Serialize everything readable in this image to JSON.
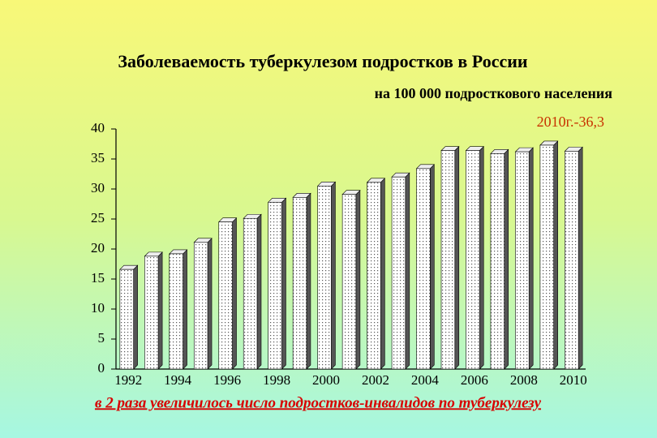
{
  "chart_data": {
    "type": "bar",
    "title": "Заболеваемость туберкулезом подростков в России",
    "subtitle": "на 100 000 подросткового населения",
    "annotation": "2010г.-36,3",
    "footnote": "в 2 раза увеличилось число подростков-инвалидов по туберкулезу",
    "categories": [
      "1992",
      null,
      "1994",
      null,
      "1996",
      null,
      "1998",
      null,
      "2000",
      null,
      "2002",
      null,
      "2004",
      null,
      "2006",
      null,
      "2008",
      null,
      "2010"
    ],
    "values": [
      16.6,
      18.8,
      19.2,
      21.1,
      24.5,
      25.1,
      27.8,
      28.6,
      30.5,
      29.1,
      31.1,
      32.0,
      33.4,
      36.4,
      36.4,
      35.9,
      36.2,
      37.3,
      36.3
    ],
    "color": "#ffffff",
    "ylim": [
      0,
      40
    ],
    "yticks": [
      0,
      5,
      10,
      15,
      20,
      25,
      30,
      35,
      40
    ],
    "grid": false
  }
}
